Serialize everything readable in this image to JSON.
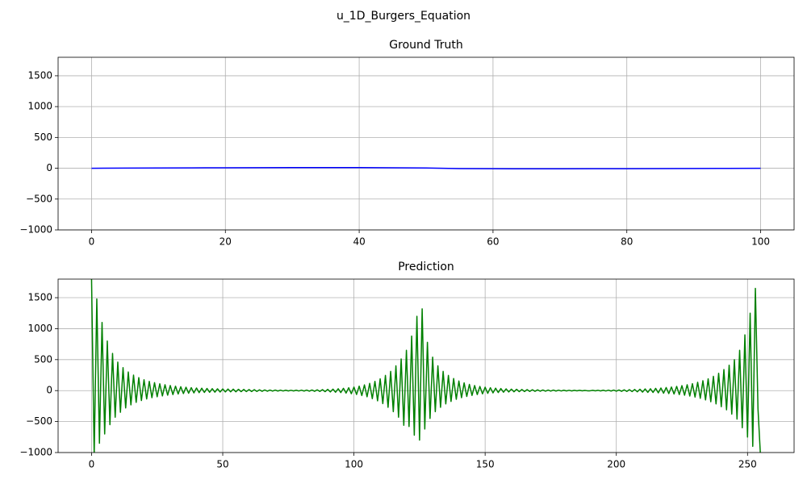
{
  "title": "u_1D_Burgers_Equation",
  "chart_data": [
    {
      "type": "line",
      "title": "Ground Truth",
      "grid": true,
      "x": [
        0,
        5,
        10,
        15,
        20,
        25,
        30,
        35,
        40,
        45,
        50,
        55,
        60,
        65,
        70,
        75,
        80,
        85,
        90,
        95,
        100
      ],
      "series": [
        {
          "color": "#0000ff",
          "values": [
            0,
            2,
            4,
            6,
            8,
            9,
            10,
            10,
            10,
            8,
            5,
            -5,
            -8,
            -9,
            -9,
            -8,
            -7,
            -5,
            -4,
            -2,
            0
          ]
        }
      ],
      "xlim": [
        -5,
        105
      ],
      "xticks": [
        0,
        20,
        40,
        60,
        80,
        100
      ],
      "ylim": [
        -1000,
        1800
      ],
      "yticks": [
        {
          "value": -1000,
          "label": "−1000"
        },
        {
          "value": -500,
          "label": "−500"
        },
        0,
        500,
        1000,
        1500
      ]
    },
    {
      "type": "line",
      "title": "Prediction",
      "grid": true,
      "x": [
        0,
        1,
        2,
        3,
        4,
        5,
        6,
        7,
        8,
        9,
        10,
        11,
        12,
        13,
        14,
        15,
        16,
        17,
        18,
        19,
        20,
        21,
        22,
        23,
        24,
        25,
        26,
        27,
        28,
        29,
        30,
        31,
        32,
        33,
        34,
        35,
        36,
        37,
        38,
        39,
        40,
        41,
        42,
        43,
        44,
        45,
        46,
        47,
        48,
        49,
        50,
        51,
        52,
        53,
        54,
        55,
        56,
        57,
        58,
        59,
        60,
        61,
        62,
        63,
        64,
        65,
        66,
        67,
        68,
        69,
        70,
        71,
        72,
        73,
        74,
        75,
        76,
        77,
        78,
        79,
        80,
        81,
        82,
        83,
        84,
        85,
        86,
        87,
        88,
        89,
        90,
        91,
        92,
        93,
        94,
        95,
        96,
        97,
        98,
        99,
        100,
        101,
        102,
        103,
        104,
        105,
        106,
        107,
        108,
        109,
        110,
        111,
        112,
        113,
        114,
        115,
        116,
        117,
        118,
        119,
        120,
        121,
        122,
        123,
        124,
        125,
        126,
        127,
        128,
        129,
        130,
        131,
        132,
        133,
        134,
        135,
        136,
        137,
        138,
        139,
        140,
        141,
        142,
        143,
        144,
        145,
        146,
        147,
        148,
        149,
        150,
        151,
        152,
        153,
        154,
        155,
        156,
        157,
        158,
        159,
        160,
        161,
        162,
        163,
        164,
        165,
        166,
        167,
        168,
        169,
        170,
        171,
        172,
        173,
        174,
        175,
        176,
        177,
        178,
        179,
        180,
        181,
        182,
        183,
        184,
        185,
        186,
        187,
        188,
        189,
        190,
        191,
        192,
        193,
        194,
        195,
        196,
        197,
        198,
        199,
        200,
        201,
        202,
        203,
        204,
        205,
        206,
        207,
        208,
        209,
        210,
        211,
        212,
        213,
        214,
        215,
        216,
        217,
        218,
        219,
        220,
        221,
        222,
        223,
        224,
        225,
        226,
        227,
        228,
        229,
        230,
        231,
        232,
        233,
        234,
        235,
        236,
        237,
        238,
        239,
        240,
        241,
        242,
        243,
        244,
        245,
        246,
        247,
        248,
        249,
        250,
        251,
        252,
        253,
        254,
        255
      ],
      "series": [
        {
          "color": "#008000",
          "values": [
            1800,
            -1050,
            1480,
            -850,
            1100,
            -700,
            800,
            -550,
            600,
            -430,
            460,
            -350,
            370,
            -280,
            300,
            -230,
            250,
            -190,
            210,
            -160,
            175,
            -135,
            150,
            -115,
            128,
            -100,
            110,
            -86,
            95,
            -74,
            82,
            -64,
            71,
            -55,
            62,
            -48,
            54,
            -42,
            47,
            -37,
            42,
            -33,
            38,
            -30,
            34,
            -27,
            31,
            -25,
            29,
            -23,
            27,
            -21,
            25,
            -20,
            23,
            -19,
            21,
            -17,
            19,
            -16,
            17,
            -15,
            15,
            -13,
            13,
            -11,
            11,
            -10,
            9,
            -8,
            8,
            -7,
            7,
            -6,
            6,
            -5,
            5,
            -5,
            6,
            -6,
            7,
            -7,
            8,
            -9,
            10,
            -11,
            13,
            -14,
            16,
            -17,
            20,
            -21,
            24,
            -26,
            30,
            -32,
            37,
            -40,
            46,
            -50,
            57,
            -63,
            72,
            -80,
            92,
            -100,
            117,
            -130,
            150,
            -165,
            190,
            -210,
            245,
            -270,
            310,
            -340,
            400,
            -430,
            510,
            -560,
            650,
            -580,
            880,
            -720,
            1200,
            -800,
            1320,
            -620,
            780,
            -450,
            540,
            -340,
            400,
            -270,
            310,
            -215,
            245,
            -175,
            195,
            -140,
            155,
            -115,
            125,
            -95,
            100,
            -78,
            82,
            -64,
            67,
            -53,
            55,
            -44,
            46,
            -37,
            39,
            -31,
            33,
            -26,
            28,
            -22,
            24,
            -19,
            21,
            -17,
            18,
            -15,
            16,
            -13,
            14,
            -11,
            12,
            -10,
            10,
            -9,
            9,
            -8,
            8,
            -7,
            7,
            -6,
            6,
            -5,
            5,
            -5,
            4,
            -4,
            4,
            -4,
            3,
            -3,
            -3,
            4,
            -4,
            5,
            -5,
            6,
            -6,
            7,
            -7,
            8,
            -9,
            10,
            -11,
            12,
            -13,
            15,
            -16,
            18,
            -20,
            22,
            -24,
            27,
            -29,
            30,
            -30,
            36,
            -36,
            42,
            -42,
            50,
            -48,
            58,
            -55,
            68,
            -64,
            80,
            -75,
            95,
            -88,
            112,
            -105,
            135,
            -125,
            160,
            -150,
            190,
            -180,
            230,
            -215,
            280,
            -260,
            340,
            -310,
            410,
            -380,
            500,
            -460,
            650,
            -600,
            900,
            -750,
            1250,
            -900,
            1650,
            -300,
            -1100
          ]
        }
      ],
      "xlim": [
        -12.75,
        267.75
      ],
      "xticks": [
        0,
        50,
        100,
        150,
        200,
        250
      ],
      "ylim": [
        -1000,
        1800
      ],
      "yticks": [
        {
          "value": -1000,
          "label": "−1000"
        },
        {
          "value": -500,
          "label": "−500"
        },
        0,
        500,
        1000,
        1500
      ]
    }
  ]
}
